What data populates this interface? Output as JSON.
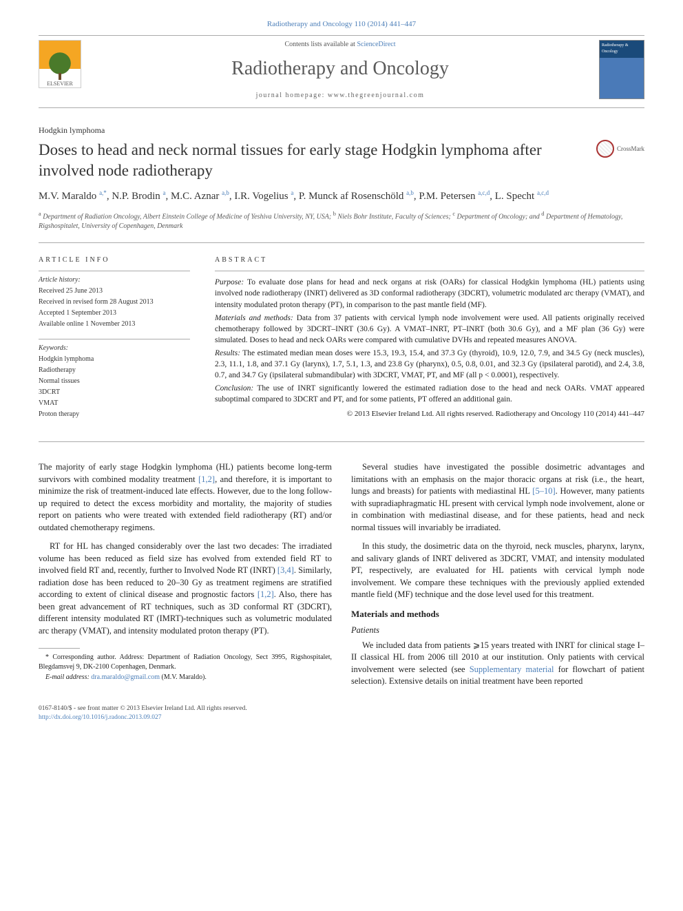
{
  "citation": "Radiotherapy and Oncology 110 (2014) 441–447",
  "contents_prefix": "Contents lists available at ",
  "contents_link": "ScienceDirect",
  "journal_name": "Radiotherapy and Oncology",
  "homepage_prefix": "journal homepage: ",
  "homepage_url": "www.thegreenjournal.com",
  "publisher_label": "ELSEVIER",
  "cover_label": "Radiotherapy & Oncology",
  "section_label": "Hodgkin lymphoma",
  "title": "Doses to head and neck normal tissues for early stage Hodgkin lymphoma after involved node radiotherapy",
  "crossmark": "CrossMark",
  "authors_html": "M.V. Maraldo <sup>a,*</sup>, N.P. Brodin <sup>a</sup>, M.C. Aznar <sup>a,b</sup>, I.R. Vogelius <sup>a</sup>, P. Munck af Rosenschöld <sup>a,b</sup>, P.M. Petersen <sup>a,c,d</sup>, L. Specht <sup>a,c,d</sup>",
  "affiliations": "<sup>a</sup> Department of Radiation Oncology, Albert Einstein College of Medicine of Yeshiva University, NY, USA; <sup>b</sup> Niels Bohr Institute, Faculty of Sciences; <sup>c</sup> Department of Oncology; and <sup>d</sup> Department of Hematology, Rigshospitalet, University of Copenhagen, Denmark",
  "article_info_heading": "ARTICLE INFO",
  "abstract_heading": "ABSTRACT",
  "history_label": "Article history:",
  "history": [
    "Received 25 June 2013",
    "Received in revised form 28 August 2013",
    "Accepted 1 September 2013",
    "Available online 1 November 2013"
  ],
  "keywords_label": "Keywords:",
  "keywords": [
    "Hodgkin lymphoma",
    "Radiotherapy",
    "Normal tissues",
    "3DCRT",
    "VMAT",
    "Proton therapy"
  ],
  "abstract": {
    "purpose": "To evaluate dose plans for head and neck organs at risk (OARs) for classical Hodgkin lymphoma (HL) patients using involved node radiotherapy (INRT) delivered as 3D conformal radiotherapy (3DCRT), volumetric modulated arc therapy (VMAT), and intensity modulated proton therapy (PT), in comparison to the past mantle field (MF).",
    "materials": "Data from 37 patients with cervical lymph node involvement were used. All patients originally received chemotherapy followed by 3DCRT–INRT (30.6 Gy). A VMAT–INRT, PT–INRT (both 30.6 Gy), and a MF plan (36 Gy) were simulated. Doses to head and neck OARs were compared with cumulative DVHs and repeated measures ANOVA.",
    "results": "The estimated median mean doses were 15.3, 19.3, 15.4, and 37.3 Gy (thyroid), 10.9, 12.0, 7.9, and 34.5 Gy (neck muscles), 2.3, 11.1, 1.8, and 37.1 Gy (larynx), 1.7, 5.1, 1.3, and 23.8 Gy (pharynx), 0.5, 0.8, 0.01, and 32.3 Gy (ipsilateral parotid), and 2.4, 3.8, 0.7, and 34.7 Gy (ipsilateral submandibular) with 3DCRT, VMAT, PT, and MF (all p < 0.0001), respectively.",
    "conclusion": "The use of INRT significantly lowered the estimated radiation dose to the head and neck OARs. VMAT appeared suboptimal compared to 3DCRT and PT, and for some patients, PT offered an additional gain."
  },
  "copyright": "© 2013 Elsevier Ireland Ltd. All rights reserved. Radiotherapy and Oncology 110 (2014) 441–447",
  "body": {
    "p1": "The majority of early stage Hodgkin lymphoma (HL) patients become long-term survivors with combined modality treatment [1,2], and therefore, it is important to minimize the risk of treatment-induced late effects. However, due to the long follow-up required to detect the excess morbidity and mortality, the majority of studies report on patients who were treated with extended field radiotherapy (RT) and/or outdated chemotherapy regimens.",
    "p2": "RT for HL has changed considerably over the last two decades: The irradiated volume has been reduced as field size has evolved from extended field RT to involved field RT and, recently, further to Involved Node RT (INRT) [3,4]. Similarly, radiation dose has been reduced to 20–30 Gy as treatment regimens are stratified according to extent of clinical disease and prognostic factors [1,2]. Also, there has been great advancement of RT techniques, such as 3D conformal RT (3DCRT), different intensity modulated RT (IMRT)-techniques such as volumetric modulated arc therapy (VMAT), and intensity modulated proton therapy (PT).",
    "p3": "Several studies have investigated the possible dosimetric advantages and limitations with an emphasis on the major thoracic organs at risk (i.e., the heart, lungs and breasts) for patients with mediastinal HL [5–10]. However, many patients with supradiaphragmatic HL present with cervical lymph node involvement, alone or in combination with mediastinal disease, and for these patients, head and neck normal tissues will invariably be irradiated.",
    "p4": "In this study, the dosimetric data on the thyroid, neck muscles, pharynx, larynx, and salivary glands of INRT delivered as 3DCRT, VMAT, and intensity modulated PT, respectively, are evaluated for HL patients with cervical lymph node involvement. We compare these techniques with the previously applied extended mantle field (MF) technique and the dose level used for this treatment.",
    "mm_heading": "Materials and methods",
    "patients_heading": "Patients",
    "p5": "We included data from patients ⩾15 years treated with INRT for clinical stage I–II classical HL from 2006 till 2010 at our institution. Only patients with cervical involvement were selected (see Supplementary material for flowchart of patient selection). Extensive details on initial treatment have been reported"
  },
  "footnote": {
    "corr": "* Corresponding author. Address: Department of Radiation Oncology, Sect 3995, Rigshospitalet, Blegdamsvej 9, DK-2100 Copenhagen, Denmark.",
    "email_label": "E-mail address:",
    "email": "dra.maraldo@gmail.com",
    "email_suffix": " (M.V. Maraldo)."
  },
  "footer": {
    "left1": "0167-8140/$ - see front matter © 2013 Elsevier Ireland Ltd. All rights reserved.",
    "doi": "http://dx.doi.org/10.1016/j.radonc.2013.09.027"
  }
}
